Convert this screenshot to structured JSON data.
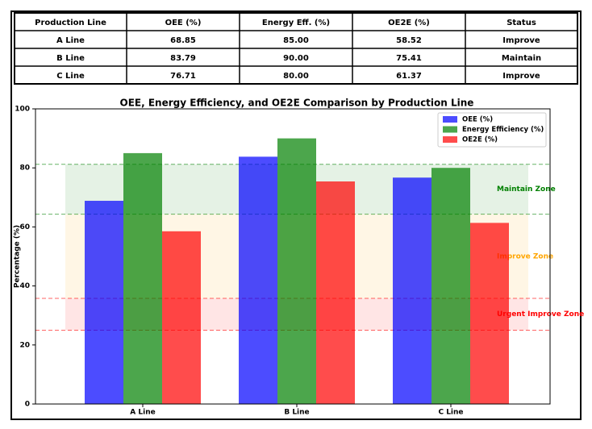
{
  "table": {
    "header": [
      "Production Line",
      "OEE (%)",
      "Energy Eff. (%)",
      "OE2E (%)",
      "Status"
    ],
    "rows": [
      [
        "A Line",
        "68.85",
        "85.00",
        "58.52",
        "Improve"
      ],
      [
        "B Line",
        "83.79",
        "90.00",
        "75.41",
        "Maintain"
      ],
      [
        "C Line",
        "76.71",
        "80.00",
        "61.37",
        "Improve"
      ]
    ]
  },
  "chart_data": {
    "type": "bar",
    "title": "OEE, Energy Efficiency, and OE2E Comparison by Production Line",
    "y_label": "Percentage (%)",
    "categories": [
      "A Line",
      "B Line",
      "C Line"
    ],
    "series": [
      {
        "name": "OEE (%)",
        "color": "#0000ff",
        "values": [
          68.85,
          83.79,
          76.71
        ]
      },
      {
        "name": "Energy Efficiency (%)",
        "color": "#008000",
        "values": [
          85,
          90,
          80
        ]
      },
      {
        "name": "OE2E (%)",
        "color": "#ff0000",
        "values": [
          58.52,
          75.41,
          61.37
        ]
      }
    ],
    "ylim": [
      0,
      100
    ],
    "yticks": [
      0,
      20,
      40,
      60,
      80,
      100
    ],
    "legend": "upper right",
    "zones": [
      {
        "label": "Maintain Zone",
        "range": [
          64.3,
          81.2
        ],
        "color": "#008000",
        "dashed": true
      },
      {
        "label": "Improve Zone",
        "range": [
          35.8,
          64.3
        ],
        "color": "#ffa500",
        "dashed": false
      },
      {
        "label": "Urgent Improve Zone",
        "range": [
          25,
          35.8
        ],
        "color": "#ff0000",
        "dashed": true
      }
    ]
  }
}
